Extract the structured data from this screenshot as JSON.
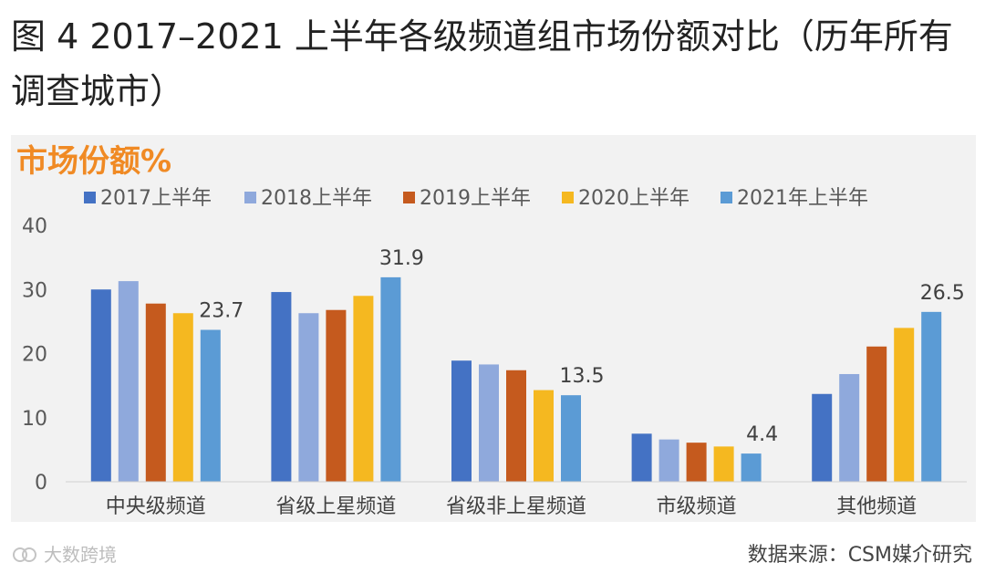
{
  "title": "图 4 2017–2021 上半年各级频道组市场份额对比（历年所有调查城市）",
  "watermark": "大数跨境",
  "source": "数据来源：CSM媒介研究",
  "colors": {
    "s2017": "#4472c4",
    "s2018": "#8fa9dc",
    "s2019": "#c55a1e",
    "s2020": "#f5b820",
    "s2021": "#5b9bd5",
    "ylabel": "#f08a24"
  },
  "chart_data": {
    "type": "bar",
    "ylabel": "市场份额%",
    "ylim": [
      0,
      40
    ],
    "yticks": [
      "0",
      "10",
      "20",
      "30",
      "40"
    ],
    "categories": [
      "中央级频道",
      "省级上星频道",
      "省级非上星频道",
      "市级频道",
      "其他频道"
    ],
    "series": [
      {
        "name": "2017上半年",
        "values": [
          30.0,
          29.6,
          18.9,
          7.5,
          13.7
        ]
      },
      {
        "name": "2018上半年",
        "values": [
          31.3,
          26.3,
          18.3,
          6.6,
          16.8
        ]
      },
      {
        "name": "2019上半年",
        "values": [
          27.8,
          26.8,
          17.4,
          6.1,
          21.1
        ]
      },
      {
        "name": "2020上半年",
        "values": [
          26.3,
          29.0,
          14.3,
          5.5,
          24.0
        ]
      },
      {
        "name": "2021年上半年",
        "values": [
          23.7,
          31.9,
          13.5,
          4.4,
          26.5
        ]
      }
    ],
    "data_labels": [
      "23.7",
      "31.9",
      "13.5",
      "4.4",
      "26.5"
    ]
  }
}
